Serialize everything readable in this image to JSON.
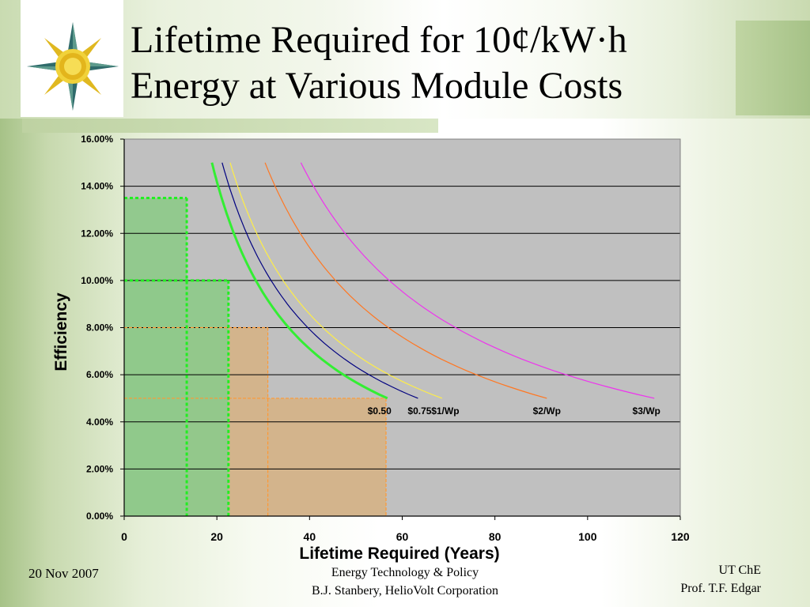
{
  "slide": {
    "title_line1": "Lifetime Required for 10¢/kW·h",
    "title_line2": "Energy at Various Module Costs",
    "footer": {
      "date": "20 Nov 2007",
      "course": "Energy Technology & Policy",
      "author": "B.J. Stanbery, HelioVolt Corporation",
      "dept": "UT ChE",
      "prof": "Prof. T.F. Edgar"
    }
  },
  "colors": {
    "plot_bg": "#c0c0c0",
    "gridline": "#000000",
    "cost_050": "#33ee33",
    "cost_075": "#000080",
    "cost_1": "#ffee44",
    "cost_2": "#ff7722",
    "cost_3": "#ee33ee",
    "green_band": "#8fc98b",
    "orange_band": "#d3b48c",
    "guide_green": "#22ee22",
    "guide_orange": "#ff9933"
  },
  "chart_data": {
    "type": "line",
    "xlabel": "Lifetime Required (Years)",
    "ylabel": "Efficiency",
    "xlim": [
      0,
      120
    ],
    "ylim": [
      0,
      0.16
    ],
    "x_ticks": [
      "0",
      "20",
      "40",
      "60",
      "80",
      "100",
      "120"
    ],
    "y_ticks": [
      "0.00%",
      "2.00%",
      "4.00%",
      "6.00%",
      "8.00%",
      "10.00%",
      "12.00%",
      "14.00%",
      "16.00%"
    ],
    "grid": true,
    "series": [
      {
        "name": "$0.50",
        "color_key": "cost_050",
        "k": 2.84,
        "y_min": 0.05,
        "y_max": 0.15
      },
      {
        "name": "$0.75",
        "color_key": "cost_075",
        "k": 3.17,
        "y_min": 0.05,
        "y_max": 0.15
      },
      {
        "name": "$1/Wp",
        "color_key": "cost_1",
        "k": 3.43,
        "y_min": 0.05,
        "y_max": 0.15
      },
      {
        "name": "$2/Wp",
        "color_key": "cost_2",
        "k": 4.56,
        "y_min": 0.05,
        "y_max": 0.15
      },
      {
        "name": "$3/Wp",
        "color_key": "cost_3",
        "k": 5.72,
        "y_min": 0.05,
        "y_max": 0.15
      }
    ],
    "highlights": {
      "green_regions": [
        {
          "x_max": 13.5,
          "y_max": 0.135
        },
        {
          "x_max": 22.5,
          "y_max": 0.1
        }
      ],
      "orange_regions": [
        {
          "x_max": 31.0,
          "y_max": 0.08
        },
        {
          "x_max": 56.5,
          "y_max": 0.05
        }
      ]
    }
  }
}
